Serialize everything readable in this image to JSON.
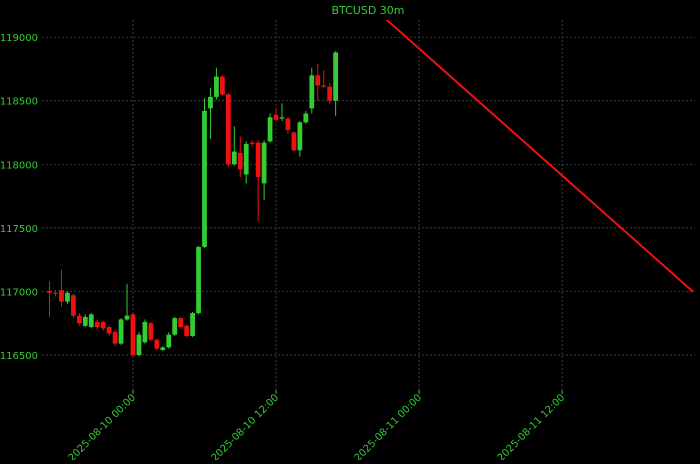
{
  "chart_data": {
    "type": "candlestick",
    "title": "BTCUSD 30m",
    "x": [
      "2025-08-09 17:00",
      "2025-08-09 17:30",
      "2025-08-09 18:00",
      "2025-08-09 18:30",
      "2025-08-09 19:00",
      "2025-08-09 19:30",
      "2025-08-09 20:00",
      "2025-08-09 20:30",
      "2025-08-09 21:00",
      "2025-08-09 21:30",
      "2025-08-09 22:00",
      "2025-08-09 22:30",
      "2025-08-09 23:00",
      "2025-08-09 23:30",
      "2025-08-10 00:00",
      "2025-08-10 00:30",
      "2025-08-10 01:00",
      "2025-08-10 01:30",
      "2025-08-10 02:00",
      "2025-08-10 02:30",
      "2025-08-10 03:00",
      "2025-08-10 03:30",
      "2025-08-10 04:00",
      "2025-08-10 04:30",
      "2025-08-10 05:00",
      "2025-08-10 05:30",
      "2025-08-10 06:00",
      "2025-08-10 06:30",
      "2025-08-10 07:00",
      "2025-08-10 07:30",
      "2025-08-10 08:00",
      "2025-08-10 08:30",
      "2025-08-10 09:00",
      "2025-08-10 09:30",
      "2025-08-10 10:00",
      "2025-08-10 10:30",
      "2025-08-10 11:00",
      "2025-08-10 11:30",
      "2025-08-10 12:00",
      "2025-08-10 12:30",
      "2025-08-10 13:00",
      "2025-08-10 13:30",
      "2025-08-10 14:00",
      "2025-08-10 14:30",
      "2025-08-10 15:00",
      "2025-08-10 15:30",
      "2025-08-10 16:00",
      "2025-08-10 16:30",
      "2025-08-10 17:00"
    ],
    "open": [
      117005,
      116990,
      117010,
      116920,
      116970,
      116810,
      116730,
      116720,
      116760,
      116760,
      116720,
      116680,
      116590,
      116780,
      116820,
      116500,
      116600,
      116750,
      116620,
      116540,
      116560,
      116660,
      116790,
      116730,
      116650,
      116830,
      117350,
      118440,
      118530,
      118690,
      118550,
      118000,
      118090,
      117920,
      118170,
      118170,
      117850,
      118180,
      118390,
      118360,
      118360,
      118250,
      118110,
      118330,
      118440,
      118700,
      118620,
      118610,
      118500
    ],
    "high": [
      117080,
      117010,
      117170,
      117000,
      116980,
      116830,
      116820,
      116830,
      116780,
      116770,
      116730,
      116700,
      116790,
      117060,
      116830,
      116680,
      116780,
      116760,
      116630,
      116570,
      116680,
      116800,
      116800,
      116740,
      116840,
      117360,
      118520,
      118600,
      118760,
      118700,
      118560,
      118300,
      118220,
      118180,
      118190,
      118190,
      118190,
      118400,
      118440,
      118480,
      118370,
      118260,
      118340,
      118420,
      118760,
      118790,
      118740,
      118640,
      118890
    ],
    "low": [
      116800,
      116960,
      116880,
      116900,
      116790,
      116730,
      116720,
      116710,
      116700,
      116690,
      116650,
      116570,
      116580,
      116770,
      116480,
      116490,
      116590,
      116610,
      116540,
      116530,
      116550,
      116650,
      116710,
      116640,
      116640,
      116820,
      117340,
      118200,
      118510,
      118540,
      117980,
      117990,
      117900,
      117850,
      118140,
      117550,
      117720,
      118170,
      118340,
      118340,
      118240,
      118100,
      118060,
      118320,
      118400,
      118500,
      118600,
      118480,
      118380
    ],
    "close": [
      116990,
      116985,
      116920,
      116990,
      116810,
      116750,
      116800,
      116820,
      116720,
      116710,
      116670,
      116590,
      116780,
      116810,
      116500,
      116660,
      116760,
      116620,
      116550,
      116560,
      116660,
      116790,
      116720,
      116650,
      116830,
      117350,
      118420,
      118530,
      118690,
      118550,
      118000,
      118100,
      117960,
      118160,
      118160,
      117900,
      118170,
      118370,
      118350,
      118370,
      118270,
      118110,
      118330,
      118400,
      118700,
      118620,
      118610,
      118500,
      118880
    ],
    "up_color": "#33cc33",
    "down_color": "#ee1111",
    "trend_line": {
      "x": [
        "2025-08-10 21:00",
        "2025-08-11 23:00"
      ],
      "values": [
        119160,
        116997
      ],
      "color": "#ee1111"
    },
    "xlim": [
      "2025-08-09 16:22",
      "2025-08-11 23:09"
    ],
    "xticks": [
      "2025-08-10 00:00",
      "2025-08-10 12:00",
      "2025-08-11 00:00",
      "2025-08-11 12:00"
    ],
    "ylim": [
      116225,
      119135
    ],
    "yticks": [
      116500,
      117000,
      117500,
      118000,
      118500,
      119000
    ],
    "grid": true
  }
}
